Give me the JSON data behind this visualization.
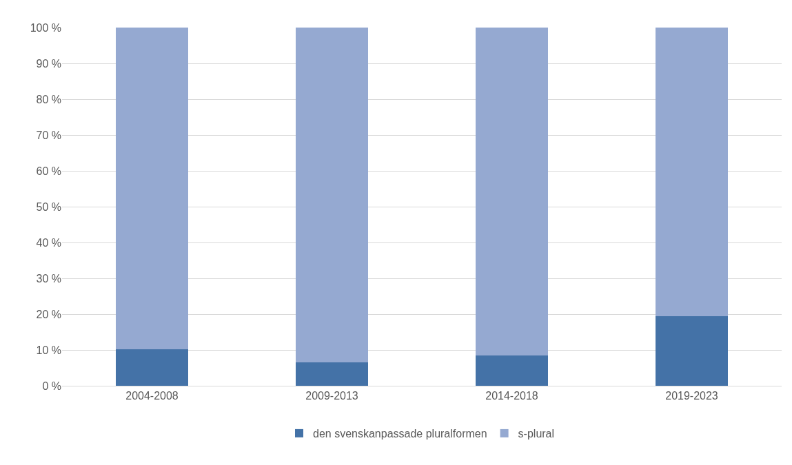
{
  "chart_data": {
    "type": "bar",
    "stacked": true,
    "categories": [
      "2004-2008",
      "2009-2013",
      "2014-2018",
      "2019-2023"
    ],
    "series": [
      {
        "name": "den svenskanpassade pluralformen",
        "color": "#4472a7",
        "values": [
          10.1,
          6.5,
          8.5,
          19.4
        ]
      },
      {
        "name": "s-plural",
        "color": "#95a9d1",
        "values": [
          89.9,
          93.5,
          91.5,
          80.6
        ]
      }
    ],
    "ylim": [
      0,
      100
    ],
    "yticks": [
      {
        "value": 0,
        "label": "0 %"
      },
      {
        "value": 10,
        "label": "10 %"
      },
      {
        "value": 20,
        "label": "20 %"
      },
      {
        "value": 30,
        "label": "30 %"
      },
      {
        "value": 40,
        "label": "40 %"
      },
      {
        "value": 50,
        "label": "50 %"
      },
      {
        "value": 60,
        "label": "60 %"
      },
      {
        "value": 70,
        "label": "70 %"
      },
      {
        "value": 80,
        "label": "80 %"
      },
      {
        "value": 90,
        "label": "90 %"
      },
      {
        "value": 100,
        "label": "100 %"
      }
    ],
    "grid": "y",
    "legend": "bottom"
  }
}
